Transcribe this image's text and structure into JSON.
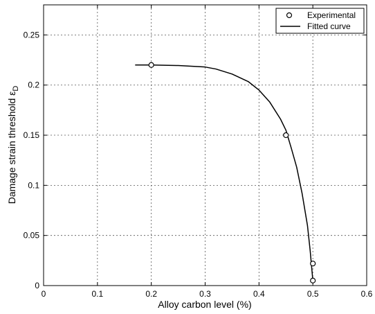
{
  "chart_data": {
    "type": "line",
    "title": "",
    "xlabel": "Alloy carbon level (%)",
    "ylabel": "Damage strain threshold ε",
    "ylabel_subscript": "D",
    "xlim": [
      0,
      0.6
    ],
    "ylim": [
      0,
      0.28
    ],
    "xticks": [
      "0",
      "0.1",
      "0.2",
      "0.3",
      "0.4",
      "0.5",
      "0.6"
    ],
    "yticks": [
      "0",
      "0.05",
      "0.1",
      "0.15",
      "0.2",
      "0.25"
    ],
    "grid": true,
    "legend_position": "top-right",
    "series": [
      {
        "name": "Experimental",
        "marker": "circle",
        "x": [
          0.2,
          0.45,
          0.5,
          0.5
        ],
        "y": [
          0.22,
          0.15,
          0.022,
          0.005
        ]
      },
      {
        "name": "Fitted curve",
        "line": "solid",
        "x": [
          0.17,
          0.2,
          0.25,
          0.3,
          0.32,
          0.35,
          0.38,
          0.4,
          0.42,
          0.44,
          0.45,
          0.46,
          0.47,
          0.48,
          0.49,
          0.495,
          0.5
        ],
        "y": [
          0.22,
          0.22,
          0.2195,
          0.218,
          0.216,
          0.211,
          0.2035,
          0.195,
          0.183,
          0.166,
          0.155,
          0.137,
          0.118,
          0.092,
          0.06,
          0.035,
          0.005
        ]
      }
    ]
  }
}
